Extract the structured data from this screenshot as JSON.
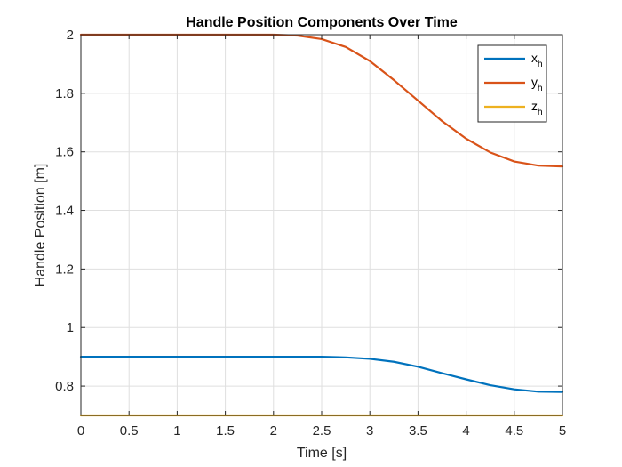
{
  "chart_data": {
    "type": "line",
    "title": "Handle Position Components Over Time",
    "xlabel": "Time [s]",
    "ylabel": "Handle Position [m]",
    "xlim": [
      0,
      5
    ],
    "ylim": [
      0.7,
      2.0
    ],
    "xticks": [
      0,
      0.5,
      1,
      1.5,
      2,
      2.5,
      3,
      3.5,
      4,
      4.5,
      5
    ],
    "xtick_labels": [
      "0",
      "0.5",
      "1",
      "1.5",
      "2",
      "2.5",
      "3",
      "3.5",
      "4",
      "4.5",
      "5"
    ],
    "yticks": [
      0.8,
      1.0,
      1.2,
      1.4,
      1.6,
      1.8,
      2.0
    ],
    "ytick_labels": [
      "0.8",
      "1",
      "1.2",
      "1.4",
      "1.6",
      "1.8",
      "2"
    ],
    "grid": true,
    "legend_position": "top-right",
    "x": [
      0,
      0.5,
      1,
      1.5,
      2,
      2.25,
      2.5,
      2.75,
      3,
      3.25,
      3.5,
      3.75,
      4,
      4.25,
      4.5,
      4.75,
      5
    ],
    "series": [
      {
        "name": "x",
        "name_subscript": "h",
        "color": "#0072bd",
        "values": [
          0.9,
          0.9,
          0.9,
          0.9,
          0.9,
          0.9,
          0.9,
          0.898,
          0.893,
          0.883,
          0.866,
          0.844,
          0.823,
          0.803,
          0.789,
          0.781,
          0.78
        ]
      },
      {
        "name": "y",
        "name_subscript": "h",
        "color": "#d95319",
        "values": [
          2.0,
          2.0,
          2.0,
          2.0,
          2.0,
          1.997,
          1.985,
          1.958,
          1.91,
          1.845,
          1.775,
          1.705,
          1.645,
          1.598,
          1.567,
          1.553,
          1.55
        ]
      },
      {
        "name": "z",
        "name_subscript": "h",
        "color": "#edb120",
        "values": [
          0.7,
          0.7,
          0.7,
          0.7,
          0.7,
          0.7,
          0.7,
          0.7,
          0.7,
          0.7,
          0.7,
          0.7,
          0.7,
          0.7,
          0.7,
          0.7,
          0.7
        ]
      }
    ]
  }
}
